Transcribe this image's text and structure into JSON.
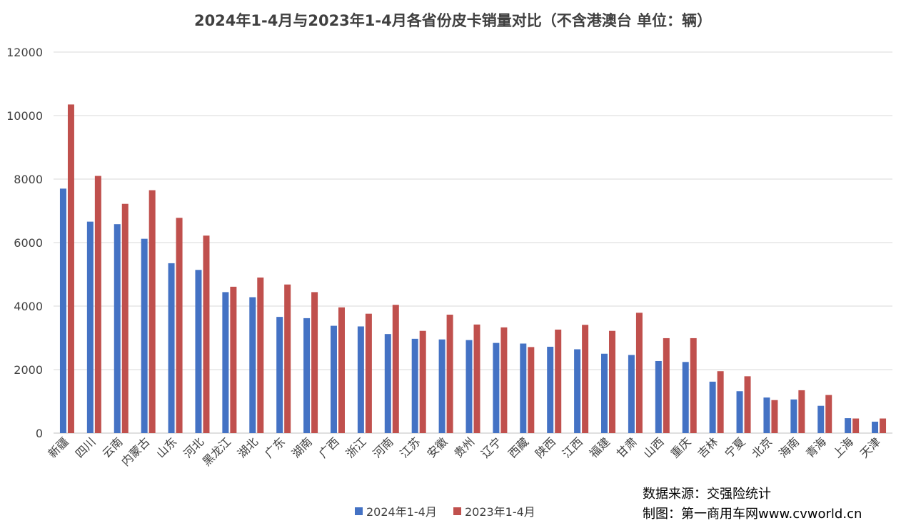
{
  "chart_data": {
    "type": "bar",
    "title": "2024年1-4月与2023年1-4月各省份皮卡销量对比（不含港澳台 单位：辆）",
    "categories": [
      "新疆",
      "四川",
      "云南",
      "内蒙古",
      "山东",
      "河北",
      "黑龙江",
      "湖北",
      "广东",
      "湖南",
      "广西",
      "浙江",
      "河南",
      "江苏",
      "安徽",
      "贵州",
      "辽宁",
      "西藏",
      "陕西",
      "江西",
      "福建",
      "甘肃",
      "山西",
      "重庆",
      "吉林",
      "宁夏",
      "北京",
      "海南",
      "青海",
      "上海",
      "天津"
    ],
    "series": [
      {
        "name": "2024年1-4月",
        "color": "#4472C4",
        "values": [
          7700,
          6660,
          6580,
          6120,
          5350,
          5140,
          4440,
          4280,
          3660,
          3620,
          3380,
          3360,
          3120,
          2970,
          2950,
          2930,
          2840,
          2820,
          2720,
          2640,
          2500,
          2460,
          2270,
          2240,
          1620,
          1320,
          1120,
          1060,
          860,
          470,
          360
        ]
      },
      {
        "name": "2023年1-4月",
        "color": "#C0504D",
        "values": [
          10350,
          8100,
          7220,
          7650,
          6780,
          6220,
          4610,
          4900,
          4680,
          4440,
          3960,
          3760,
          4040,
          3220,
          3730,
          3420,
          3330,
          2710,
          3260,
          3410,
          3220,
          3790,
          2990,
          2990,
          1950,
          1790,
          1040,
          1350,
          1200,
          460,
          460
        ]
      }
    ],
    "ylim": [
      0,
      12000
    ],
    "yticks": [
      0,
      2000,
      4000,
      6000,
      8000,
      10000,
      12000
    ],
    "grid": true,
    "legend": "bottom"
  },
  "source": {
    "line1": "数据来源：交强险统计",
    "line2": "制图：第一商用车网www.cvworld.cn"
  }
}
